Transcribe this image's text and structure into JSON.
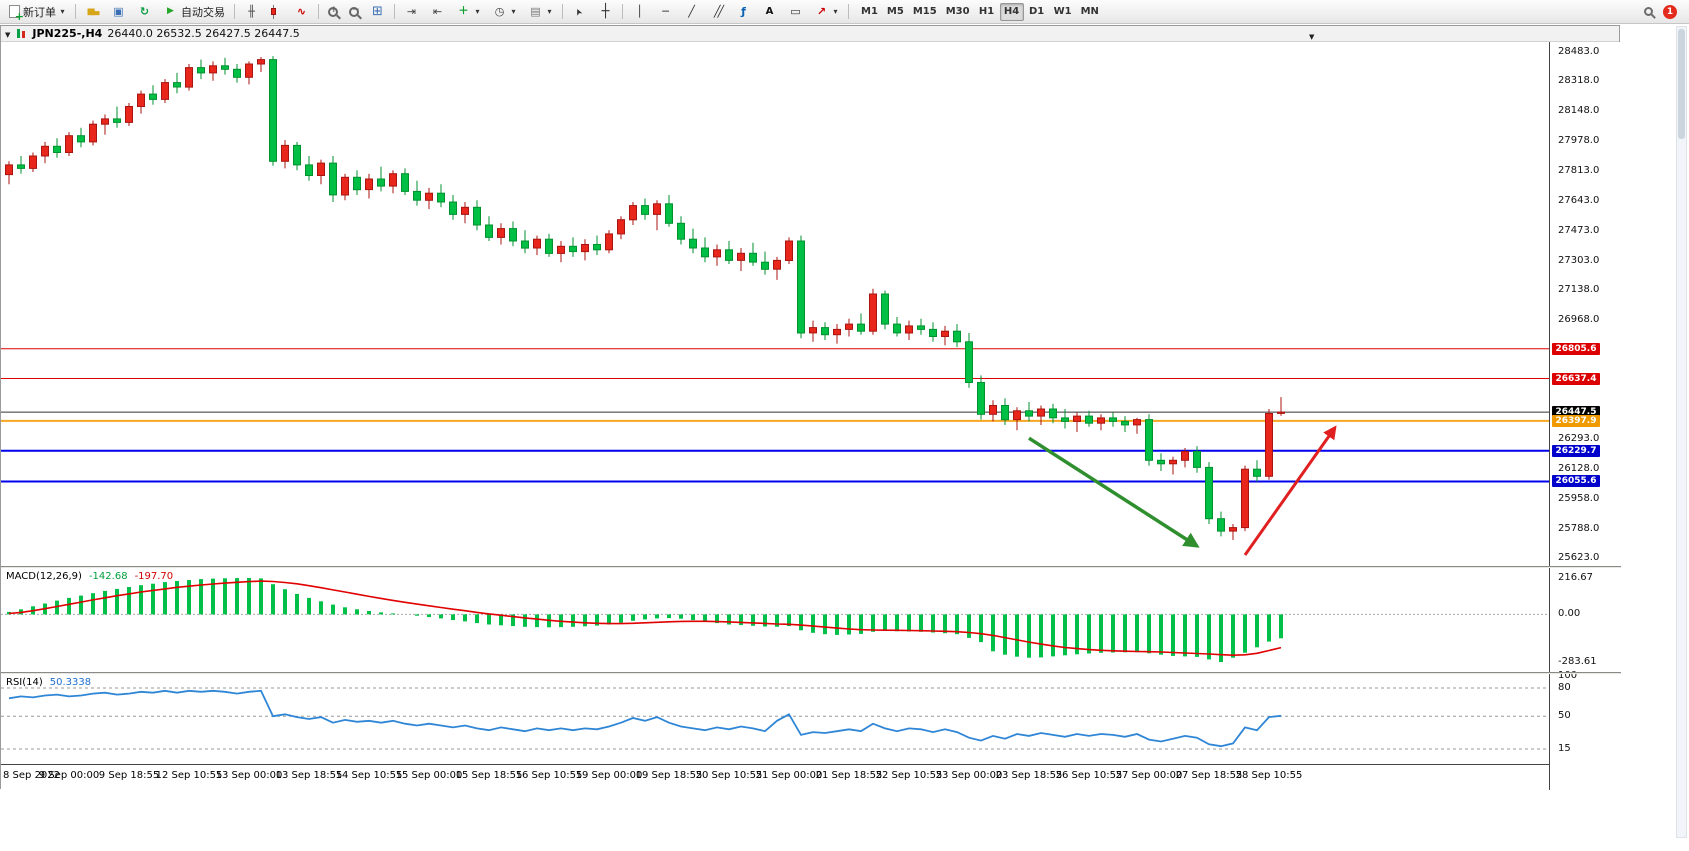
{
  "toolbar": {
    "new_order_label": "新订单",
    "autotrade_label": "自动交易",
    "timeframes": [
      "M1",
      "M5",
      "M15",
      "M30",
      "H1",
      "H4",
      "D1",
      "W1",
      "MN"
    ],
    "active_timeframe": "H4",
    "badge_count": "1"
  },
  "chart_header": {
    "symbol_title": "JPN225-,H4",
    "ohlc": "26440.0 26532.5 26427.5 26447.5"
  },
  "panels": {
    "macd_label": "MACD(12,26,9)",
    "macd_main_value": "-142.68",
    "macd_signal_value": "-197.70",
    "rsi_label": "RSI(14)",
    "rsi_value": "50.3338"
  },
  "chart_data": {
    "type": "candlestick",
    "symbol": "JPN225-",
    "timeframe": "H4",
    "price_axis": {
      "max": 28483.0,
      "min": 25623.0
    },
    "price_ticks": [
      28483.0,
      28318.0,
      28148.0,
      27978.0,
      27813.0,
      27643.0,
      27473.0,
      27303.0,
      27138.0,
      26968.0,
      26293.0,
      26128.0,
      25958.0,
      25788.0,
      25623.0
    ],
    "hlines": [
      {
        "value": 26805.6,
        "color": "#dd0000",
        "width": 1,
        "chip_bg": "#dd0000"
      },
      {
        "value": 26637.4,
        "color": "#dd0000",
        "width": 1,
        "chip_bg": "#dd0000"
      },
      {
        "value": 26447.5,
        "color": "#333333",
        "width": 1,
        "chip_bg": "#000000"
      },
      {
        "value": 26397.9,
        "color": "#f5a623",
        "width": 2,
        "chip_bg": "#f09a00"
      },
      {
        "value": 26229.7,
        "color": "#0000ee",
        "width": 2,
        "chip_bg": "#0000cc"
      },
      {
        "value": 26055.6,
        "color": "#0000ee",
        "width": 2,
        "chip_bg": "#0000cc"
      }
    ],
    "time_labels": [
      "8 Sep 2022",
      "9 Sep 00:00",
      "9 Sep 18:55",
      "12 Sep 10:55",
      "13 Sep 00:00",
      "13 Sep 18:55",
      "14 Sep 10:55",
      "15 Sep 00:00",
      "15 Sep 18:55",
      "16 Sep 10:55",
      "19 Sep 00:00",
      "19 Sep 18:55",
      "20 Sep 10:55",
      "21 Sep 00:00",
      "21 Sep 18:55",
      "22 Sep 10:55",
      "23 Sep 00:00",
      "23 Sep 18:55",
      "26 Sep 10:55",
      "27 Sep 00:00",
      "27 Sep 18:55",
      "28 Sep 10:55"
    ],
    "candles": [
      [
        27790,
        27865,
        27735,
        27845
      ],
      [
        27845,
        27895,
        27795,
        27825
      ],
      [
        27825,
        27915,
        27805,
        27895
      ],
      [
        27895,
        27975,
        27855,
        27950
      ],
      [
        27950,
        27995,
        27885,
        27915
      ],
      [
        27915,
        28030,
        27895,
        28010
      ],
      [
        28010,
        28055,
        27945,
        27975
      ],
      [
        27975,
        28095,
        27955,
        28075
      ],
      [
        28075,
        28130,
        28015,
        28105
      ],
      [
        28105,
        28175,
        28055,
        28085
      ],
      [
        28085,
        28195,
        28065,
        28175
      ],
      [
        28175,
        28265,
        28135,
        28245
      ],
      [
        28245,
        28295,
        28185,
        28215
      ],
      [
        28215,
        28330,
        28195,
        28310
      ],
      [
        28310,
        28365,
        28250,
        28285
      ],
      [
        28285,
        28415,
        28265,
        28395
      ],
      [
        28395,
        28440,
        28330,
        28365
      ],
      [
        28365,
        28430,
        28320,
        28405
      ],
      [
        28405,
        28450,
        28355,
        28385
      ],
      [
        28385,
        28415,
        28310,
        28340
      ],
      [
        28340,
        28430,
        28300,
        28415
      ],
      [
        28415,
        28455,
        28370,
        28440
      ],
      [
        28440,
        28460,
        27840,
        27865
      ],
      [
        27865,
        27985,
        27825,
        27955
      ],
      [
        27955,
        27975,
        27815,
        27845
      ],
      [
        27845,
        27895,
        27755,
        27785
      ],
      [
        27785,
        27875,
        27735,
        27855
      ],
      [
        27855,
        27895,
        27635,
        27675
      ],
      [
        27675,
        27795,
        27645,
        27775
      ],
      [
        27775,
        27815,
        27675,
        27705
      ],
      [
        27705,
        27795,
        27655,
        27765
      ],
      [
        27765,
        27835,
        27695,
        27725
      ],
      [
        27725,
        27815,
        27685,
        27795
      ],
      [
        27795,
        27825,
        27675,
        27695
      ],
      [
        27695,
        27755,
        27615,
        27645
      ],
      [
        27645,
        27715,
        27595,
        27685
      ],
      [
        27685,
        27735,
        27605,
        27635
      ],
      [
        27635,
        27675,
        27535,
        27565
      ],
      [
        27565,
        27635,
        27515,
        27605
      ],
      [
        27605,
        27645,
        27475,
        27505
      ],
      [
        27505,
        27555,
        27415,
        27435
      ],
      [
        27435,
        27515,
        27395,
        27485
      ],
      [
        27485,
        27525,
        27385,
        27415
      ],
      [
        27415,
        27475,
        27345,
        27375
      ],
      [
        27375,
        27445,
        27335,
        27425
      ],
      [
        27425,
        27455,
        27325,
        27345
      ],
      [
        27345,
        27415,
        27295,
        27385
      ],
      [
        27385,
        27435,
        27325,
        27355
      ],
      [
        27355,
        27425,
        27305,
        27395
      ],
      [
        27395,
        27445,
        27335,
        27365
      ],
      [
        27365,
        27475,
        27345,
        27455
      ],
      [
        27455,
        27555,
        27425,
        27535
      ],
      [
        27535,
        27635,
        27505,
        27615
      ],
      [
        27615,
        27655,
        27535,
        27565
      ],
      [
        27565,
        27645,
        27475,
        27625
      ],
      [
        27625,
        27675,
        27495,
        27515
      ],
      [
        27515,
        27555,
        27395,
        27425
      ],
      [
        27425,
        27485,
        27345,
        27375
      ],
      [
        27375,
        27435,
        27295,
        27325
      ],
      [
        27325,
        27395,
        27275,
        27365
      ],
      [
        27365,
        27415,
        27285,
        27305
      ],
      [
        27305,
        27375,
        27245,
        27345
      ],
      [
        27345,
        27405,
        27275,
        27295
      ],
      [
        27295,
        27355,
        27225,
        27255
      ],
      [
        27255,
        27325,
        27195,
        27305
      ],
      [
        27305,
        27435,
        27285,
        27415
      ],
      [
        27415,
        27445,
        26865,
        26895
      ],
      [
        26895,
        26965,
        26845,
        26925
      ],
      [
        26925,
        26955,
        26855,
        26885
      ],
      [
        26885,
        26945,
        26835,
        26915
      ],
      [
        26915,
        26975,
        26875,
        26945
      ],
      [
        26945,
        27005,
        26885,
        26905
      ],
      [
        26905,
        27145,
        26885,
        27115
      ],
      [
        27115,
        27135,
        26915,
        26945
      ],
      [
        26945,
        26985,
        26875,
        26895
      ],
      [
        26895,
        26965,
        26855,
        26935
      ],
      [
        26935,
        26975,
        26885,
        26915
      ],
      [
        26915,
        26955,
        26845,
        26875
      ],
      [
        26875,
        26935,
        26825,
        26905
      ],
      [
        26905,
        26945,
        26815,
        26845
      ],
      [
        26845,
        26895,
        26585,
        26615
      ],
      [
        26615,
        26655,
        26405,
        26435
      ],
      [
        26435,
        26515,
        26395,
        26485
      ],
      [
        26485,
        26525,
        26375,
        26405
      ],
      [
        26405,
        26475,
        26345,
        26455
      ],
      [
        26455,
        26505,
        26395,
        26425
      ],
      [
        26425,
        26485,
        26375,
        26465
      ],
      [
        26465,
        26495,
        26385,
        26415
      ],
      [
        26415,
        26465,
        26355,
        26395
      ],
      [
        26395,
        26445,
        26335,
        26425
      ],
      [
        26425,
        26455,
        26365,
        26385
      ],
      [
        26385,
        26435,
        26345,
        26415
      ],
      [
        26415,
        26445,
        26365,
        26395
      ],
      [
        26395,
        26425,
        26335,
        26375
      ],
      [
        26375,
        26415,
        26325,
        26405
      ],
      [
        26405,
        26435,
        26145,
        26175
      ],
      [
        26175,
        26215,
        26115,
        26155
      ],
      [
        26155,
        26195,
        26095,
        26175
      ],
      [
        26175,
        26245,
        26135,
        26225
      ],
      [
        26225,
        26255,
        26105,
        26135
      ],
      [
        26135,
        26165,
        25815,
        25845
      ],
      [
        25845,
        25885,
        25745,
        25775
      ],
      [
        25775,
        25815,
        25725,
        25795
      ],
      [
        25795,
        26145,
        25775,
        26125
      ],
      [
        26125,
        26175,
        26055,
        26085
      ],
      [
        26085,
        26465,
        26065,
        26440
      ],
      [
        26440,
        26532.5,
        26427.5,
        26447.5
      ]
    ],
    "macd": {
      "histogram": [
        15,
        30,
        48,
        65,
        82,
        98,
        112,
        126,
        140,
        152,
        163,
        174,
        183,
        192,
        199,
        205,
        210,
        213,
        215,
        216,
        216.67,
        214,
        180,
        150,
        122,
        98,
        78,
        58,
        42,
        30,
        20,
        12,
        6,
        0,
        -8,
        -16,
        -24,
        -34,
        -42,
        -52,
        -60,
        -65,
        -70,
        -74,
        -76,
        -77,
        -76,
        -74,
        -71,
        -67,
        -60,
        -50,
        -38,
        -30,
        -24,
        -22,
        -26,
        -34,
        -44,
        -52,
        -60,
        -64,
        -68,
        -72,
        -74,
        -70,
        -95,
        -110,
        -118,
        -122,
        -120,
        -116,
        -104,
        -98,
        -100,
        -102,
        -104,
        -108,
        -112,
        -118,
        -140,
        -165,
        -220,
        -240,
        -252,
        -258,
        -256,
        -250,
        -244,
        -238,
        -233,
        -229,
        -227,
        -226,
        -225,
        -232,
        -240,
        -247,
        -250,
        -253,
        -268,
        -283.61,
        -258,
        -228,
        -196,
        -162,
        -142.68
      ],
      "signal": [
        5,
        12,
        22,
        34,
        47,
        60,
        73,
        86,
        99,
        111,
        122,
        133,
        143,
        152,
        161,
        168,
        175,
        181,
        186,
        191,
        195,
        198,
        196,
        190,
        182,
        171,
        159,
        146,
        133,
        120,
        107,
        95,
        83,
        72,
        61,
        51,
        41,
        31,
        22,
        12,
        3,
        -5,
        -13,
        -21,
        -28,
        -35,
        -41,
        -46,
        -50,
        -53,
        -55,
        -55,
        -53,
        -50,
        -47,
        -44,
        -42,
        -41,
        -41,
        -43,
        -45,
        -48,
        -51,
        -54,
        -57,
        -59,
        -64,
        -70,
        -76,
        -82,
        -87,
        -91,
        -93,
        -94,
        -95,
        -96,
        -97,
        -99,
        -101,
        -103,
        -108,
        -115,
        -125,
        -138,
        -152,
        -165,
        -177,
        -188,
        -197,
        -204,
        -210,
        -214,
        -217,
        -219,
        -221,
        -222,
        -224,
        -227,
        -230,
        -233,
        -236,
        -240,
        -243,
        -241,
        -232,
        -215,
        -197.7
      ],
      "scale_labels": [
        216.67,
        0,
        -283.61
      ]
    },
    "rsi": {
      "values": [
        69,
        71,
        70,
        72,
        73,
        71,
        72,
        74,
        75,
        73,
        74,
        76,
        75,
        77,
        75,
        77,
        76,
        77,
        76,
        74,
        76,
        77,
        50,
        52,
        49,
        47,
        49,
        43,
        46,
        44,
        45,
        43,
        45,
        42,
        40,
        42,
        40,
        38,
        40,
        37,
        35,
        38,
        36,
        34,
        37,
        35,
        37,
        35,
        37,
        36,
        39,
        43,
        48,
        45,
        49,
        43,
        39,
        37,
        35,
        38,
        36,
        39,
        37,
        34,
        45,
        52,
        30,
        33,
        32,
        34,
        36,
        34,
        42,
        37,
        34,
        37,
        36,
        33,
        36,
        33,
        27,
        24,
        29,
        26,
        31,
        29,
        32,
        30,
        28,
        31,
        29,
        31,
        30,
        28,
        31,
        25,
        23,
        26,
        29,
        27,
        20,
        18,
        21,
        38,
        35,
        49,
        50.3338
      ],
      "level_lines": [
        80,
        50,
        15
      ],
      "level_labels": [
        100,
        80,
        50,
        15
      ]
    },
    "arrows": [
      {
        "name": "green-down-arrow",
        "color": "#2f8f2f",
        "width": 3.5,
        "from_index": 85,
        "from_price": 26300,
        "to_index": 99,
        "to_price": 25690
      },
      {
        "name": "red-up-arrow",
        "color": "#e02020",
        "width": 3,
        "from_index": 103,
        "from_price": 25640,
        "to_index": 110.5,
        "to_price": 26360
      }
    ],
    "colors": {
      "up": "#e8261c",
      "up_border": "#a81510",
      "down": "#00bf44",
      "down_border": "#00912f",
      "macd_bar": "#00c04a",
      "macd_signal": "#e00000",
      "rsi_line": "#2f86d6"
    }
  }
}
